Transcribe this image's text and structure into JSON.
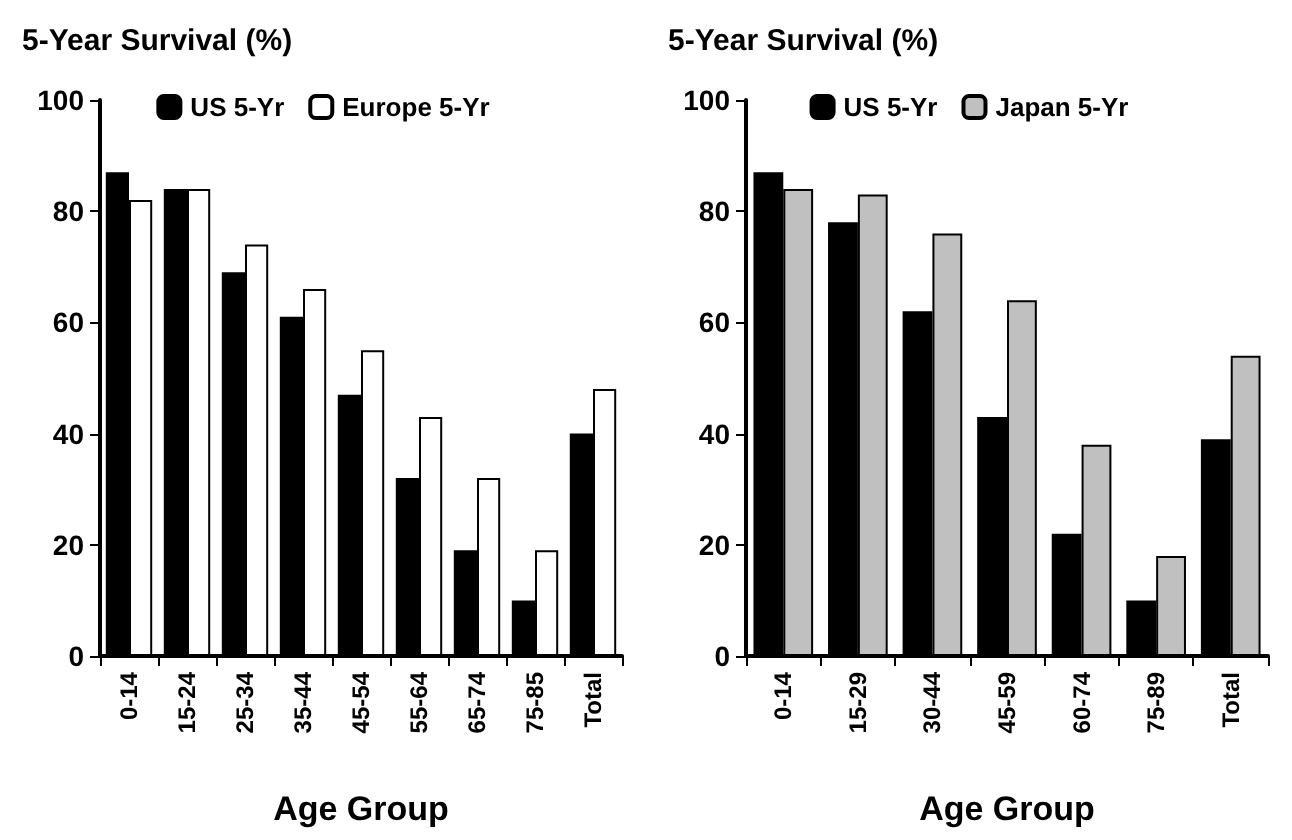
{
  "chart_data": [
    {
      "type": "bar",
      "title": "5-Year Survival (%)",
      "xlabel": "Age Group",
      "categories": [
        "0-14",
        "15-24",
        "25-34",
        "35-44",
        "45-54",
        "55-64",
        "65-74",
        "75-85",
        "Total"
      ],
      "series": [
        {
          "name": "US 5-Yr",
          "color": "#000000",
          "values": [
            87,
            84,
            69,
            61,
            47,
            32,
            19,
            10,
            40
          ]
        },
        {
          "name": "Europe 5-Yr",
          "color": "#ffffff",
          "values": [
            82,
            84,
            74,
            66,
            55,
            43,
            32,
            19,
            48
          ]
        }
      ],
      "ylim": [
        0,
        100
      ],
      "yticks": [
        0,
        20,
        40,
        60,
        80,
        100
      ],
      "grid": false,
      "legend": "top"
    },
    {
      "type": "bar",
      "title": "5-Year Survival (%)",
      "xlabel": "Age Group",
      "categories": [
        "0-14",
        "15-29",
        "30-44",
        "45-59",
        "60-74",
        "75-89",
        "Total"
      ],
      "series": [
        {
          "name": "US 5-Yr",
          "color": "#000000",
          "values": [
            87,
            78,
            62,
            43,
            22,
            10,
            39
          ]
        },
        {
          "name": "Japan 5-Yr",
          "color": "#c0c0c0",
          "values": [
            84,
            83,
            76,
            64,
            38,
            18,
            54
          ]
        }
      ],
      "ylim": [
        0,
        100
      ],
      "yticks": [
        0,
        20,
        40,
        60,
        80,
        100
      ],
      "grid": false,
      "legend": "top"
    }
  ]
}
